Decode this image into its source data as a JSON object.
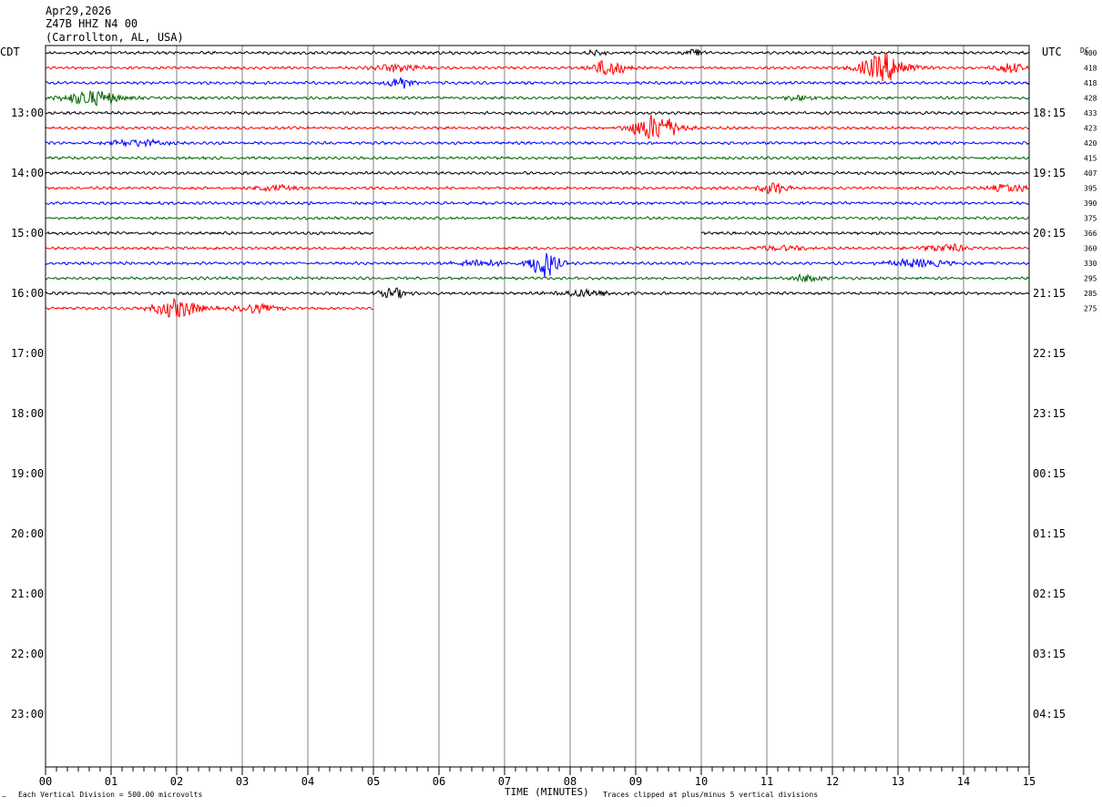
{
  "header": {
    "date": "Apr29,2026",
    "station": "Z47B HHZ N4 00",
    "location": "(Carrollton, AL, USA)"
  },
  "labels": {
    "left_timezone": "CDT",
    "right_timezone": "UTC",
    "dc_header": "DC",
    "x_title": "TIME (MINUTES)",
    "scale_note": "Each Vertical Division =  500.00 microvolts",
    "clip_note": "Traces clipped at plus/minus 5 vertical divisions"
  },
  "colors": {
    "trace_cycle": [
      "#000000",
      "#ff0000",
      "#0000ff",
      "#006400"
    ],
    "grid": "#808080",
    "frame": "#000000"
  },
  "chart_data": {
    "type": "line",
    "x_range_minutes": [
      0,
      15
    ],
    "x_tick_labels": [
      "00",
      "01",
      "02",
      "03",
      "04",
      "05",
      "06",
      "07",
      "08",
      "09",
      "10",
      "11",
      "12",
      "13",
      "14",
      "15"
    ],
    "rows_per_hour": 4,
    "total_rows": 48,
    "left_hour_labels": [
      "13:00",
      "14:00",
      "15:00",
      "16:00",
      "17:00",
      "18:00",
      "19:00",
      "20:00",
      "21:00",
      "22:00",
      "23:00"
    ],
    "right_hour_labels": [
      "18:15",
      "19:15",
      "20:15",
      "21:15",
      "22:15",
      "23:15",
      "00:15",
      "01:15",
      "02:15",
      "03:15",
      "04:15"
    ],
    "dc_offsets": [
      "400",
      "418",
      "418",
      "428",
      "433",
      "423",
      "420",
      "415",
      "407",
      "395",
      "390",
      "375",
      "366",
      "360",
      "330",
      "295",
      "285",
      "275"
    ],
    "traces": [
      {
        "row": 0,
        "start_min": 0,
        "end_min": 15,
        "events": [
          {
            "t": 8.4,
            "amp": 3,
            "dur": 0.2
          },
          {
            "t": 9.9,
            "amp": 3,
            "dur": 0.2
          }
        ]
      },
      {
        "row": 1,
        "start_min": 0,
        "end_min": 15,
        "events": [
          {
            "t": 5.4,
            "amp": 4,
            "dur": 0.5
          },
          {
            "t": 8.6,
            "amp": 9,
            "dur": 0.35
          },
          {
            "t": 12.8,
            "amp": 14,
            "dur": 0.55
          },
          {
            "t": 14.7,
            "amp": 5,
            "dur": 0.3
          }
        ]
      },
      {
        "row": 2,
        "start_min": 0,
        "end_min": 15,
        "events": [
          {
            "t": 5.4,
            "amp": 7,
            "dur": 0.25
          }
        ]
      },
      {
        "row": 3,
        "start_min": 0,
        "end_min": 15,
        "events": [
          {
            "t": 0.7,
            "amp": 8,
            "dur": 0.6
          },
          {
            "t": 11.5,
            "amp": 3,
            "dur": 0.3
          }
        ]
      },
      {
        "row": 4,
        "start_min": 0,
        "end_min": 15,
        "events": []
      },
      {
        "row": 5,
        "start_min": 0,
        "end_min": 15,
        "events": [
          {
            "t": 9.3,
            "amp": 14,
            "dur": 0.5
          }
        ]
      },
      {
        "row": 6,
        "start_min": 0,
        "end_min": 15,
        "events": [
          {
            "t": 1.4,
            "amp": 3,
            "dur": 0.6
          }
        ]
      },
      {
        "row": 7,
        "start_min": 0,
        "end_min": 15,
        "events": []
      },
      {
        "row": 8,
        "start_min": 0,
        "end_min": 15,
        "events": []
      },
      {
        "row": 9,
        "start_min": 0,
        "end_min": 15,
        "events": [
          {
            "t": 3.5,
            "amp": 3,
            "dur": 0.4
          },
          {
            "t": 11.1,
            "amp": 6,
            "dur": 0.3
          },
          {
            "t": 14.7,
            "amp": 4,
            "dur": 0.4
          }
        ]
      },
      {
        "row": 10,
        "start_min": 0,
        "end_min": 15,
        "events": []
      },
      {
        "row": 11,
        "start_min": 0,
        "end_min": 15,
        "events": []
      },
      {
        "row": 12,
        "start_min": 0,
        "end_min": 5,
        "events": []
      },
      {
        "row": 12,
        "start_min": 10,
        "end_min": 15,
        "events": []
      },
      {
        "row": 13,
        "start_min": 0,
        "end_min": 15,
        "events": [
          {
            "t": 11.2,
            "amp": 2,
            "dur": 0.6
          },
          {
            "t": 13.7,
            "amp": 4,
            "dur": 0.5
          }
        ]
      },
      {
        "row": 14,
        "start_min": 0,
        "end_min": 15,
        "events": [
          {
            "t": 6.6,
            "amp": 4,
            "dur": 0.5
          },
          {
            "t": 7.6,
            "amp": 15,
            "dur": 0.3
          },
          {
            "t": 13.3,
            "amp": 4,
            "dur": 0.6
          }
        ]
      },
      {
        "row": 15,
        "start_min": 0,
        "end_min": 15,
        "events": [
          {
            "t": 11.6,
            "amp": 4,
            "dur": 0.3
          }
        ]
      },
      {
        "row": 16,
        "start_min": 0,
        "end_min": 15,
        "events": [
          {
            "t": 5.3,
            "amp": 5,
            "dur": 0.3
          },
          {
            "t": 8.2,
            "amp": 3,
            "dur": 0.6
          }
        ]
      },
      {
        "row": 17,
        "start_min": 0,
        "end_min": 5,
        "events": [
          {
            "t": 2.0,
            "amp": 10,
            "dur": 0.5
          },
          {
            "t": 3.2,
            "amp": 4,
            "dur": 0.5
          }
        ]
      }
    ]
  }
}
